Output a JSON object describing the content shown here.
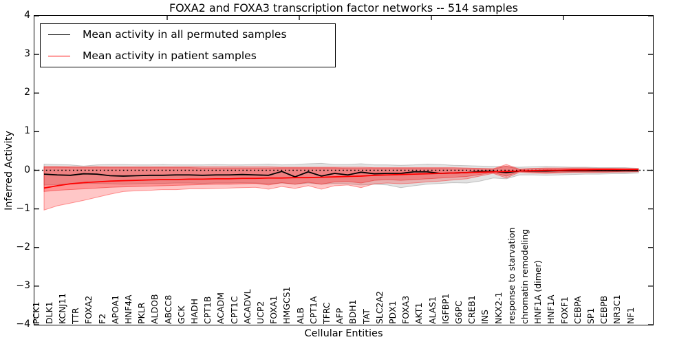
{
  "legend": {
    "entries": [
      {
        "label": "Mean activity in all permuted samples",
        "color": "#000000"
      },
      {
        "label": "Mean activity in patient samples",
        "color": "#ff0000"
      }
    ]
  },
  "chart_data": {
    "type": "line",
    "title": "FOXA2 and FOXA3 transcription factor networks -- 514 samples",
    "xlabel": "Cellular Entities",
    "ylabel": "Inferred Activity",
    "ylim": [
      -4,
      4
    ],
    "yticks": [
      4,
      3,
      2,
      1,
      0,
      -1,
      -2,
      -3,
      -4
    ],
    "ytick_labels": [
      "4",
      "3",
      "2",
      "1",
      "0",
      "−1",
      "−2",
      "−3",
      "−4"
    ],
    "grid": false,
    "legend_position": "upper left",
    "zero_line": {
      "style": "dotted",
      "color": "#000000",
      "y": 0
    },
    "categories": [
      "PCK1",
      "DLK1",
      "KCNJ11",
      "TTR",
      "FOXA2",
      "F2",
      "APOA1",
      "HNF4A",
      "PKLR",
      "ALDOB",
      "ABCC8",
      "GCK",
      "HADH",
      "CPT1B",
      "ACADM",
      "CPT1C",
      "ACADVL",
      "UCP2",
      "FOXA1",
      "HMGCS1",
      "ALB",
      "CPT1A",
      "TFRC",
      "AFP",
      "BDH1",
      "TAT",
      "SLC2A2",
      "PDX1",
      "FOXA3",
      "AKT1",
      "ALAS1",
      "IGFBP1",
      "G6PC",
      "CREB1",
      "INS",
      "NKX2-1",
      "response to starvation",
      "chromatin remodeling",
      "HNF1A (dimer)",
      "HNF1A",
      "FOXF1",
      "CEBPA",
      "SP1",
      "CEBPB",
      "NR3C1",
      "NF1"
    ],
    "series": [
      {
        "name": "Mean activity in all permuted samples",
        "color": "#000000",
        "values": [
          -0.1,
          -0.12,
          -0.13,
          -0.09,
          -0.1,
          -0.14,
          -0.15,
          -0.14,
          -0.13,
          -0.13,
          -0.12,
          -0.12,
          -0.13,
          -0.12,
          -0.12,
          -0.11,
          -0.12,
          -0.13,
          -0.03,
          -0.17,
          -0.04,
          -0.15,
          -0.08,
          -0.12,
          -0.05,
          -0.09,
          -0.08,
          -0.08,
          -0.04,
          -0.04,
          -0.08,
          -0.07,
          -0.06,
          -0.03,
          -0.03,
          -0.06,
          -0.02,
          -0.02,
          -0.02,
          -0.01,
          -0.01,
          -0.01,
          -0.01,
          -0.01,
          -0.01,
          -0.01
        ]
      },
      {
        "name": "Mean activity in patient samples",
        "color": "#ff0000",
        "values": [
          -0.46,
          -0.4,
          -0.35,
          -0.32,
          -0.3,
          -0.28,
          -0.27,
          -0.26,
          -0.25,
          -0.24,
          -0.24,
          -0.23,
          -0.23,
          -0.22,
          -0.22,
          -0.21,
          -0.21,
          -0.2,
          -0.2,
          -0.19,
          -0.19,
          -0.18,
          -0.17,
          -0.16,
          -0.15,
          -0.13,
          -0.12,
          -0.11,
          -0.1,
          -0.09,
          -0.08,
          -0.07,
          -0.06,
          -0.05,
          -0.04,
          -0.03,
          -0.02,
          -0.01,
          0.0,
          0.0,
          0.01,
          0.01,
          0.02,
          0.02,
          0.02,
          0.02
        ]
      }
    ],
    "bands": [
      {
        "name": "permuted-samples-range",
        "fill": "rgba(110,110,110,0.20)",
        "stroke": "rgba(110,110,110,0.35)",
        "top": [
          0.16,
          0.15,
          0.14,
          0.11,
          0.14,
          0.15,
          0.15,
          0.14,
          0.14,
          0.15,
          0.14,
          0.14,
          0.14,
          0.15,
          0.14,
          0.14,
          0.15,
          0.16,
          0.14,
          0.15,
          0.17,
          0.18,
          0.15,
          0.15,
          0.17,
          0.14,
          0.14,
          0.13,
          0.14,
          0.16,
          0.15,
          0.13,
          0.12,
          0.11,
          0.1,
          0.09,
          0.08,
          0.09,
          0.1,
          0.09,
          0.08,
          0.08,
          0.07,
          0.07,
          0.07,
          0.05
        ],
        "bottom": [
          -0.38,
          -0.37,
          -0.36,
          -0.34,
          -0.34,
          -0.35,
          -0.36,
          -0.35,
          -0.34,
          -0.34,
          -0.33,
          -0.33,
          -0.34,
          -0.33,
          -0.33,
          -0.32,
          -0.33,
          -0.35,
          -0.33,
          -0.36,
          -0.33,
          -0.36,
          -0.34,
          -0.35,
          -0.38,
          -0.36,
          -0.38,
          -0.45,
          -0.4,
          -0.36,
          -0.34,
          -0.32,
          -0.33,
          -0.28,
          -0.2,
          -0.22,
          -0.12,
          -0.12,
          -0.13,
          -0.12,
          -0.11,
          -0.1,
          -0.1,
          -0.09,
          -0.09,
          -0.07
        ]
      },
      {
        "name": "patient-samples-range-outer",
        "fill": "rgba(255,0,0,0.22)",
        "stroke": "rgba(255,0,0,0.38)",
        "top": [
          0.1,
          0.1,
          0.1,
          0.09,
          0.1,
          0.09,
          0.09,
          0.09,
          0.09,
          0.09,
          0.09,
          0.09,
          0.09,
          0.09,
          0.09,
          0.09,
          0.09,
          0.09,
          0.08,
          0.08,
          0.08,
          0.08,
          0.08,
          0.08,
          0.08,
          0.07,
          0.07,
          0.07,
          0.07,
          0.07,
          0.07,
          0.07,
          0.06,
          0.05,
          0.04,
          0.15,
          0.03,
          0.05,
          0.06,
          0.06,
          0.06,
          0.06,
          0.05,
          0.05,
          0.05,
          0.04
        ],
        "bottom": [
          -1.03,
          -0.92,
          -0.85,
          -0.78,
          -0.7,
          -0.62,
          -0.55,
          -0.53,
          -0.52,
          -0.5,
          -0.5,
          -0.48,
          -0.48,
          -0.47,
          -0.46,
          -0.45,
          -0.44,
          -0.49,
          -0.42,
          -0.47,
          -0.4,
          -0.49,
          -0.4,
          -0.38,
          -0.45,
          -0.35,
          -0.33,
          -0.35,
          -0.33,
          -0.3,
          -0.28,
          -0.25,
          -0.22,
          -0.15,
          -0.08,
          -0.2,
          -0.05,
          -0.07,
          -0.08,
          -0.07,
          -0.06,
          -0.06,
          -0.06,
          -0.05,
          -0.05,
          -0.04
        ]
      },
      {
        "name": "patient-samples-range-inner",
        "fill": "rgba(255,0,0,0.26)",
        "stroke": "rgba(230,0,0,0.40)",
        "top": [
          0.08,
          0.08,
          0.07,
          0.07,
          0.07,
          0.07,
          0.07,
          0.07,
          0.07,
          0.07,
          0.07,
          0.07,
          0.06,
          0.06,
          0.06,
          0.06,
          0.06,
          0.06,
          0.06,
          0.06,
          0.06,
          0.06,
          0.06,
          0.05,
          0.05,
          0.05,
          0.05,
          0.05,
          0.05,
          0.05,
          0.05,
          0.04,
          0.04,
          0.04,
          0.03,
          0.11,
          0.02,
          0.04,
          0.04,
          0.04,
          0.04,
          0.04,
          0.04,
          0.04,
          0.03,
          0.03
        ],
        "bottom": [
          -0.55,
          -0.52,
          -0.5,
          -0.48,
          -0.46,
          -0.44,
          -0.43,
          -0.42,
          -0.41,
          -0.4,
          -0.39,
          -0.38,
          -0.37,
          -0.36,
          -0.36,
          -0.35,
          -0.34,
          -0.38,
          -0.32,
          -0.36,
          -0.31,
          -0.36,
          -0.3,
          -0.29,
          -0.33,
          -0.26,
          -0.24,
          -0.26,
          -0.24,
          -0.22,
          -0.2,
          -0.18,
          -0.16,
          -0.11,
          -0.06,
          -0.15,
          -0.03,
          -0.05,
          -0.06,
          -0.05,
          -0.04,
          -0.04,
          -0.04,
          -0.04,
          -0.03,
          -0.03
        ]
      }
    ]
  }
}
